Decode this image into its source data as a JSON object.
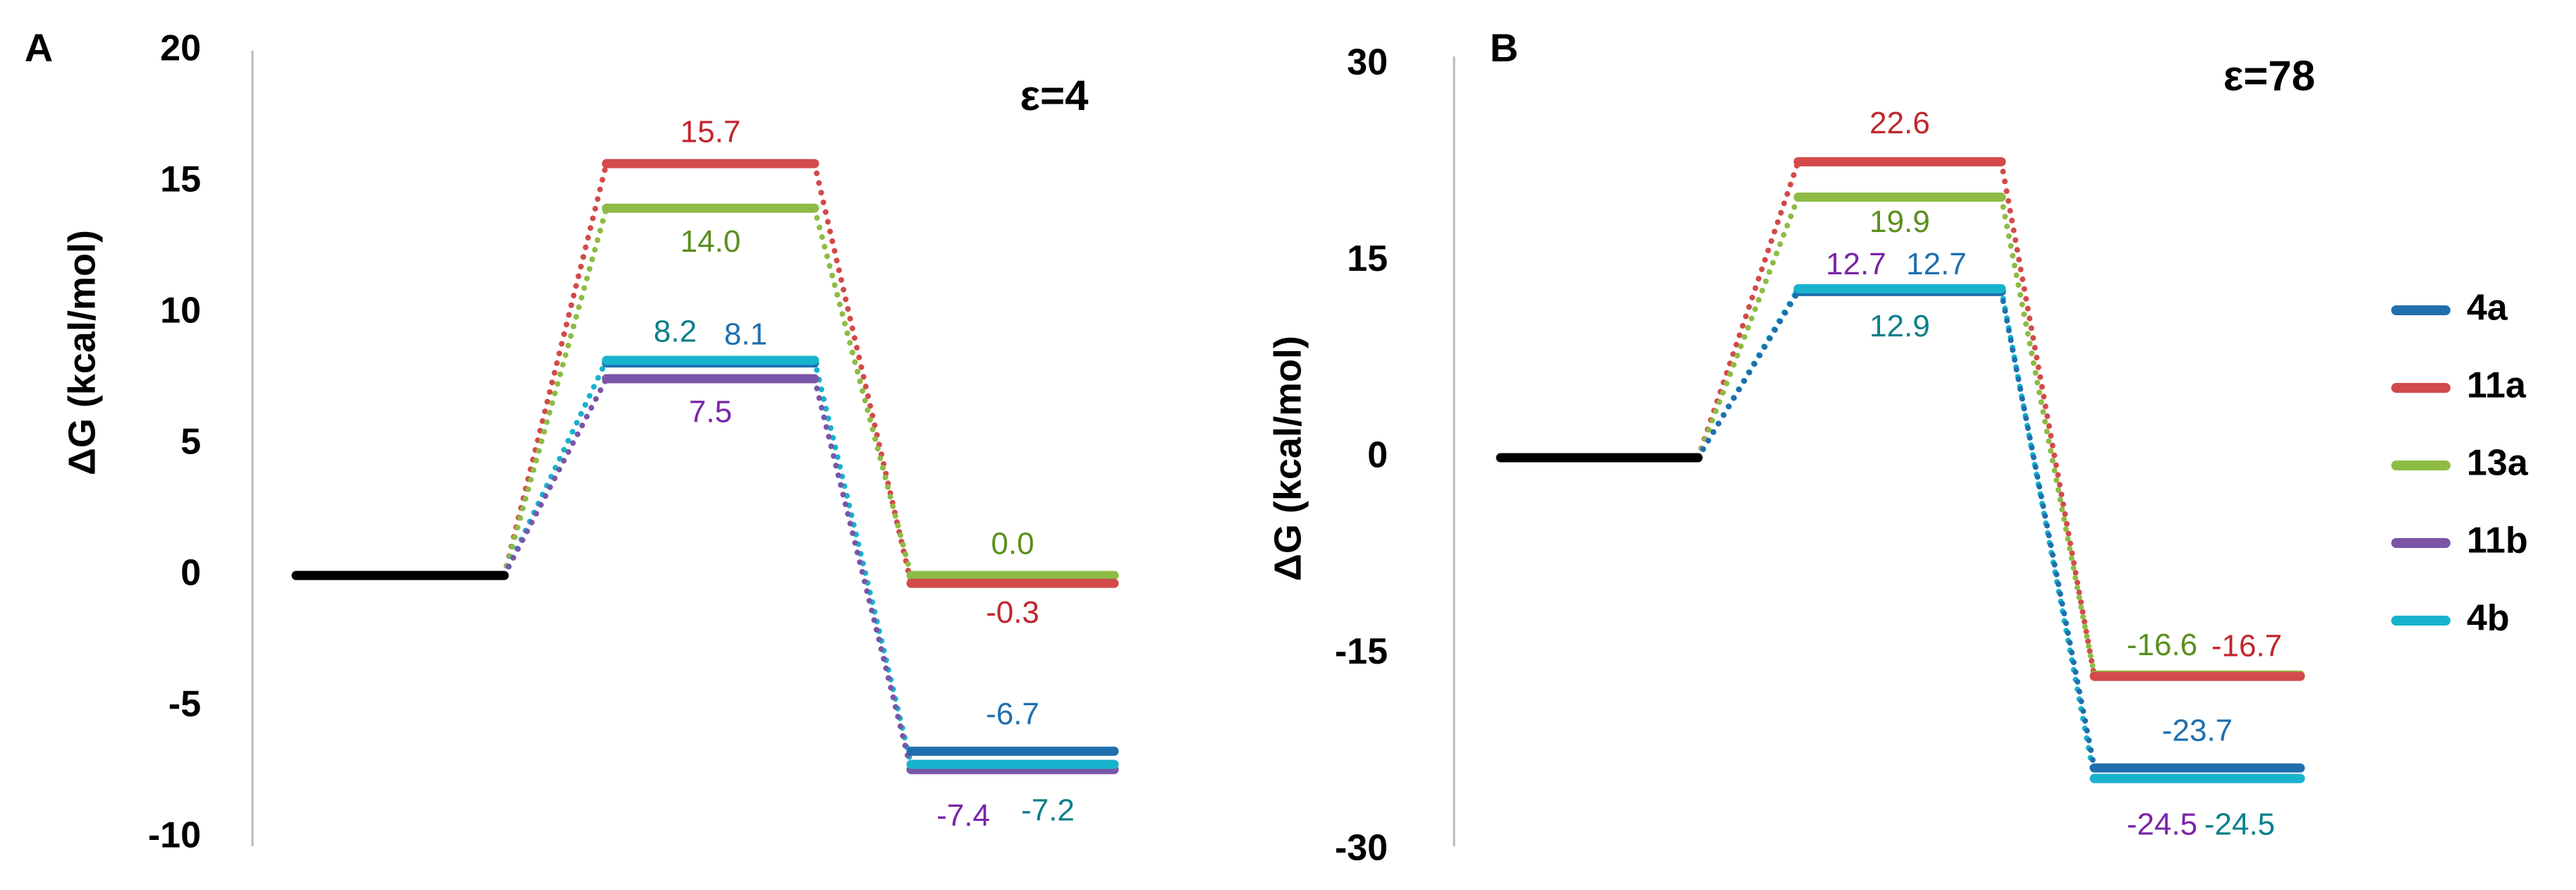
{
  "colors": {
    "4a": "#1f6fae",
    "11a": "#d34a4a",
    "13a": "#8dbc45",
    "11b": "#7a55a8",
    "4b": "#17b3cc",
    "reactant": "#000000",
    "label_4a": "#1f6fae",
    "label_11a": "#c0262c",
    "label_13a": "#5a8f1d",
    "label_11b": "#7a24a8",
    "label_4b": "#0b7f8a",
    "axis": "#bbbbbb"
  },
  "legend": {
    "items": [
      {
        "key": "4a",
        "label": "4a"
      },
      {
        "key": "11a",
        "label": "11a"
      },
      {
        "key": "13a",
        "label": "13a"
      },
      {
        "key": "11b",
        "label": "11b"
      },
      {
        "key": "4b",
        "label": "4b"
      }
    ]
  },
  "chart_data": [
    {
      "type": "energy-profile",
      "panel_label": "A",
      "condition": "ε=4",
      "ylabel": "ΔG (kcal/mol)",
      "ylim": [
        -10,
        20
      ],
      "yticks": [
        "20",
        "15",
        "10",
        "5",
        "0",
        "-5",
        "-10"
      ],
      "ytick_values": [
        20,
        15,
        10,
        5,
        0,
        -5,
        -10
      ],
      "reactant": 0,
      "series": [
        {
          "name": "11a",
          "ts": 15.7,
          "product": -0.3,
          "ts_label": "15.7",
          "product_label": "-0.3"
        },
        {
          "name": "13a",
          "ts": 14.0,
          "product": 0.0,
          "ts_label": "14.0",
          "product_label": "0.0"
        },
        {
          "name": "4b",
          "ts": 8.2,
          "product": -7.2,
          "ts_label": "8.2",
          "product_label": "-7.2"
        },
        {
          "name": "4a",
          "ts": 8.1,
          "product": -6.7,
          "ts_label": "8.1",
          "product_label": "-6.7"
        },
        {
          "name": "11b",
          "ts": 7.5,
          "product": -7.4,
          "ts_label": "7.5",
          "product_label": "-7.4"
        }
      ]
    },
    {
      "type": "energy-profile",
      "panel_label": "B",
      "condition": "ε=78",
      "ylabel": "ΔG (kcal/mol)",
      "ylim": [
        -30,
        30
      ],
      "yticks": [
        "30",
        "15",
        "0",
        "-15",
        "-30"
      ],
      "ytick_values": [
        30,
        15,
        0,
        -15,
        -30
      ],
      "reactant": 0,
      "series": [
        {
          "name": "11a",
          "ts": 22.6,
          "product": -16.7,
          "ts_label": "22.6",
          "product_label": "-16.7"
        },
        {
          "name": "13a",
          "ts": 19.9,
          "product": -16.6,
          "ts_label": "19.9",
          "product_label": "-16.6"
        },
        {
          "name": "11b",
          "ts": 12.7,
          "product": -24.5,
          "ts_label": "12.7",
          "product_label": "-24.5"
        },
        {
          "name": "4a",
          "ts": 12.7,
          "product": -23.7,
          "ts_label": "12.7",
          "product_label": "-23.7"
        },
        {
          "name": "4b",
          "ts": 12.9,
          "product": -24.5,
          "ts_label": "12.9",
          "product_label": "-24.5"
        }
      ]
    }
  ]
}
